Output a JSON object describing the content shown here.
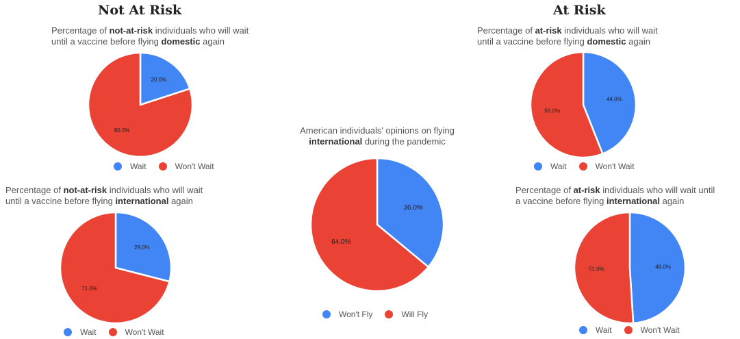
{
  "headings": {
    "not_at_risk": "Not At Risk",
    "at_risk": "At Risk"
  },
  "colors": {
    "blue": "#4285f4",
    "red": "#ea4335"
  },
  "chart_data": [
    {
      "type": "pie",
      "title_parts": [
        "Percentage of ",
        "not-at-risk",
        " individuals who will wait",
        "until a vaccine before flying ",
        "domestic",
        " again"
      ],
      "legend": [
        "Wait",
        "Won't Wait"
      ],
      "slices": [
        {
          "label": "Wait",
          "value": 20.0,
          "label_text": "20.0%",
          "color": "#4285f4"
        },
        {
          "label": "Won't Wait",
          "value": 80.0,
          "label_text": "80.0%",
          "color": "#ea4335"
        }
      ]
    },
    {
      "type": "pie",
      "title_parts": [
        "Percentage of ",
        "not-at-risk",
        " individuals who will wait",
        "until a vaccine before flying ",
        "international",
        " again"
      ],
      "legend": [
        "Wait",
        "Won't Wait"
      ],
      "slices": [
        {
          "label": "Wait",
          "value": 29.0,
          "label_text": "29.0%",
          "color": "#4285f4"
        },
        {
          "label": "Won't Wait",
          "value": 71.0,
          "label_text": "71.0%",
          "color": "#ea4335"
        }
      ]
    },
    {
      "type": "pie",
      "title_parts": [
        "American individuals' opinions on flying",
        "",
        "",
        "",
        "international",
        " during the pandemic"
      ],
      "legend": [
        "Won't Fly",
        "Will Fly"
      ],
      "slices": [
        {
          "label": "Won't Fly",
          "value": 36.0,
          "label_text": "36.0%",
          "color": "#4285f4"
        },
        {
          "label": "Will Fly",
          "value": 64.0,
          "label_text": "64.0%",
          "color": "#ea4335"
        }
      ]
    },
    {
      "type": "pie",
      "title_parts": [
        "Percentage of ",
        "at-risk",
        " individuals who will wait",
        "until a vaccine before flying ",
        "domestic",
        " again"
      ],
      "legend": [
        "Wait",
        "Won't Wait"
      ],
      "slices": [
        {
          "label": "Wait",
          "value": 44.0,
          "label_text": "44.0%",
          "color": "#4285f4"
        },
        {
          "label": "Won't Wait",
          "value": 56.0,
          "label_text": "56.0%",
          "color": "#ea4335"
        }
      ]
    },
    {
      "type": "pie",
      "title_parts": [
        "Percentage of ",
        "at-risk",
        " individuals who will wait until",
        "a vaccine before flying ",
        "international",
        " again"
      ],
      "legend": [
        "Wait",
        "Won't Wait"
      ],
      "slices": [
        {
          "label": "Wait",
          "value": 49.0,
          "label_text": "49.0%",
          "color": "#4285f4"
        },
        {
          "label": "Won't Wait",
          "value": 51.0,
          "label_text": "51.0%",
          "color": "#ea4335"
        }
      ]
    }
  ]
}
